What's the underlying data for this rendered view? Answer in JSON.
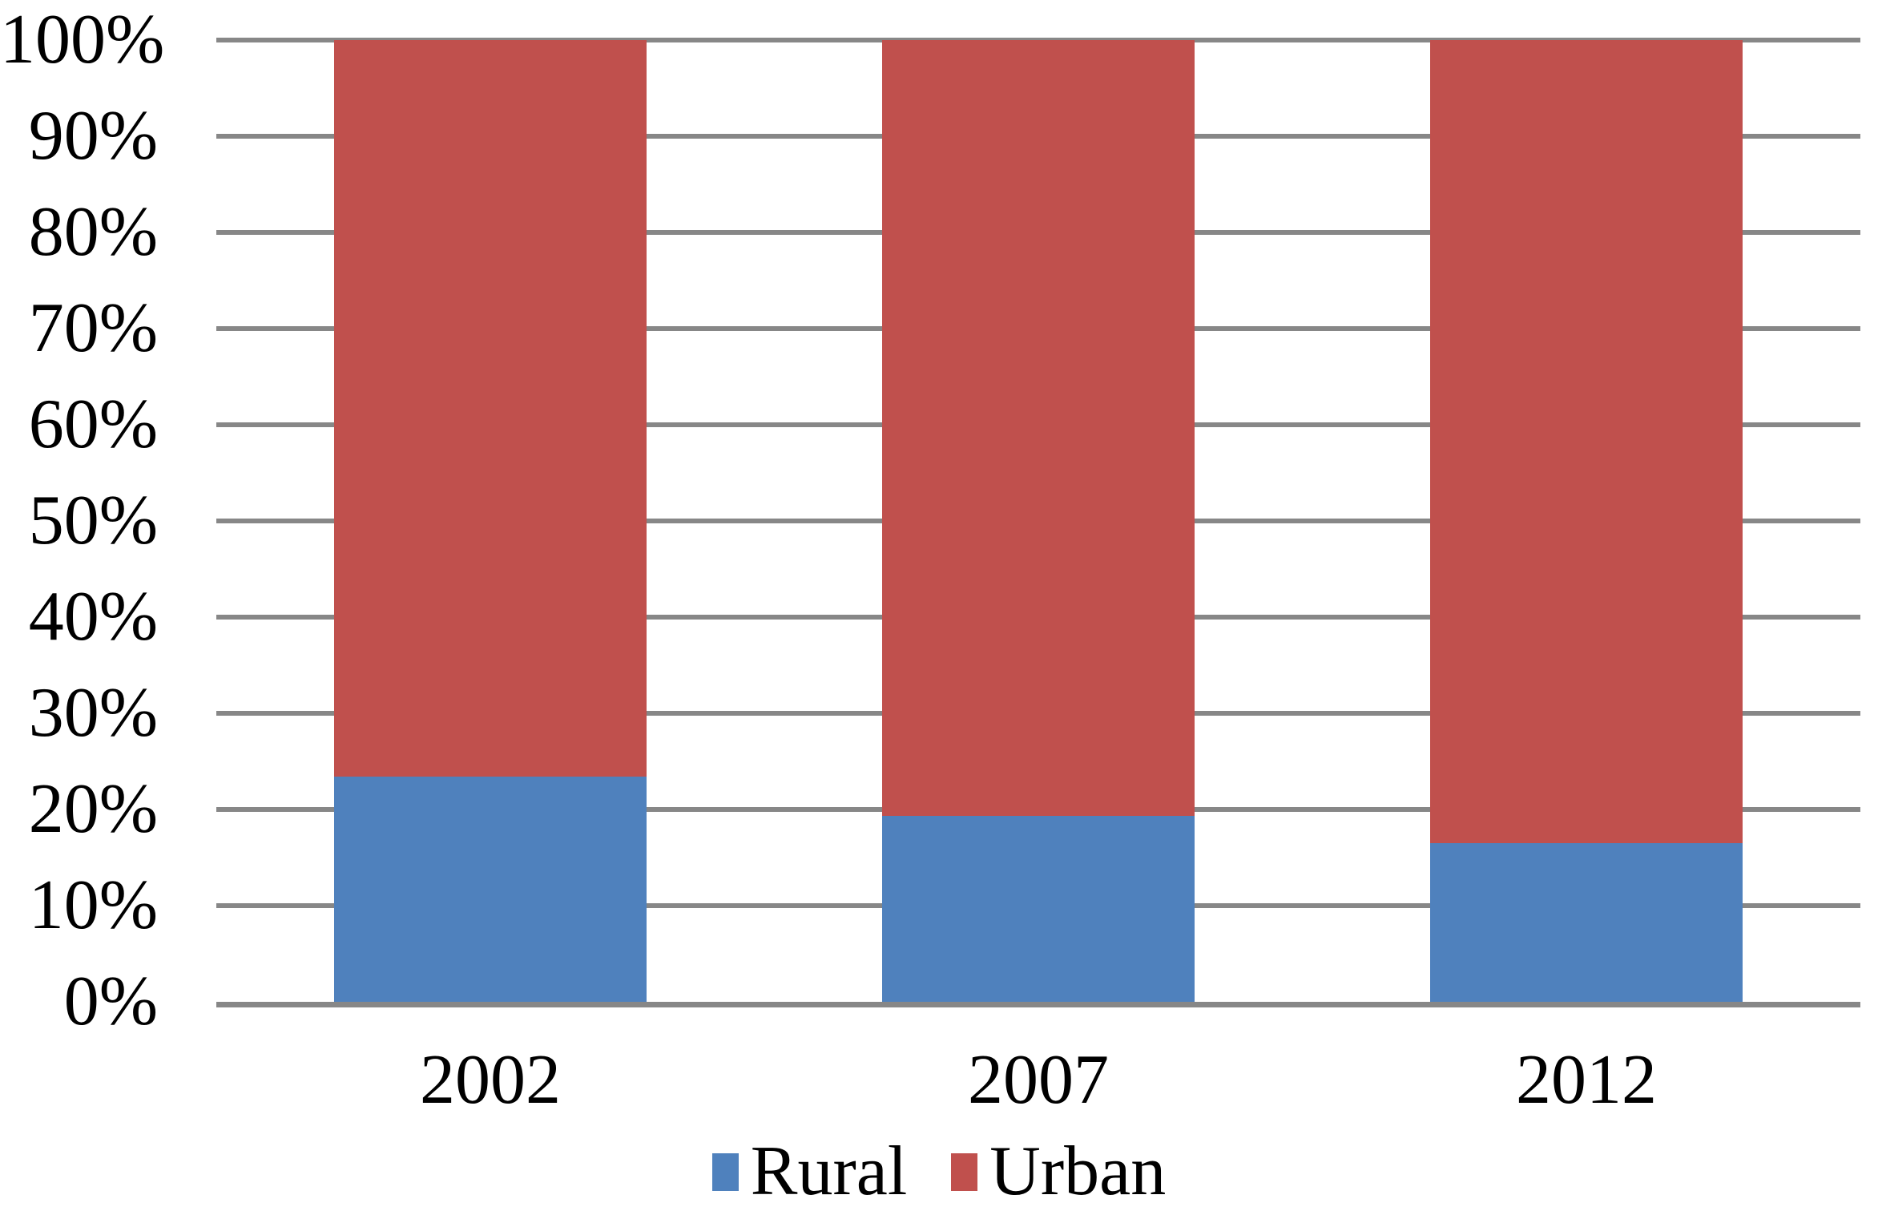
{
  "chart_data": {
    "type": "bar",
    "variant": "stacked-100-percent",
    "title": "",
    "xlabel": "",
    "ylabel": "",
    "categories": [
      "2002",
      "2007",
      "2012"
    ],
    "series": [
      {
        "name": "Rural",
        "color": "#4F81BD",
        "values": [
          23.4,
          19.3,
          16.5
        ]
      },
      {
        "name": "Urban",
        "color": "#C0504D",
        "values": [
          76.6,
          80.7,
          83.5
        ]
      }
    ],
    "ylim": [
      0,
      100
    ],
    "y_tick_step": 10,
    "y_tick_labels": [
      "0%",
      "10%",
      "20%",
      "30%",
      "40%",
      "50%",
      "60%",
      "70%",
      "80%",
      "90%",
      "100%"
    ],
    "grid": true,
    "gridline_color": "#878787",
    "axis_line_color": "#878787",
    "background_color": "#FFFFFF",
    "text_color": "#000000",
    "legend_position": "bottom-center",
    "legend_entries": [
      "Rural",
      "Urban"
    ]
  }
}
